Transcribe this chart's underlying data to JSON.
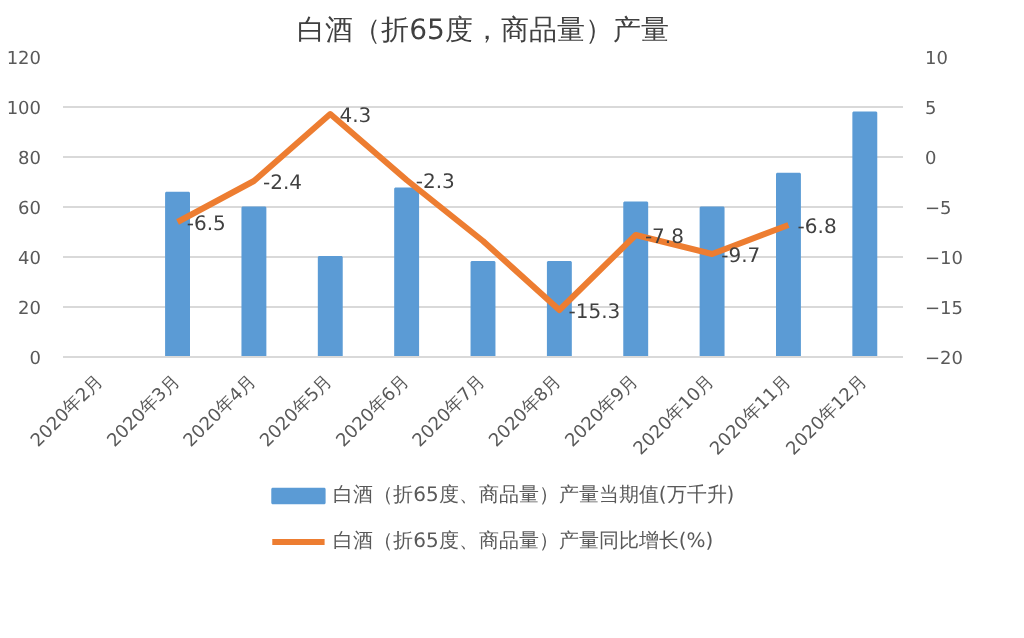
{
  "chart_data": {
    "type": "bar",
    "title": "白酒（折65度，商品量）产量",
    "categories": [
      "2020年2月",
      "2020年3月",
      "2020年4月",
      "2020年5月",
      "2020年6月",
      "2020年7月",
      "2020年8月",
      "2020年9月",
      "2020年10月",
      "2020年11月",
      "2020年12月"
    ],
    "series": [
      {
        "name": "白酒（折65度、商品量）产量当期值(万千升)",
        "color": "#5b9bd5",
        "values": [
          null,
          65.7,
          59.8,
          40,
          67.4,
          38,
          38,
          61.8,
          59.8,
          73.3,
          97.8
        ]
      },
      {
        "name": "白酒（折65度、商品量）产量同比增长(%)",
        "type": "line",
        "axis": "y2",
        "color": "#ed7d31",
        "values": [
          null,
          -6.5,
          -2.4,
          4.3,
          -2.3,
          -8.4,
          -15.3,
          -7.8,
          -9.7,
          -6.8,
          null
        ],
        "value_labels": [
          null,
          "-6.5",
          "-2.4",
          "4.3",
          "-2.3",
          null,
          "-15.3",
          "-7.8",
          "-9.7",
          "-6.8",
          null
        ]
      }
    ],
    "ylim": [
      0,
      120
    ],
    "yticks": [
      0,
      20,
      40,
      60,
      80,
      100,
      120
    ],
    "y2lim": [
      -20,
      10
    ],
    "y2ticks": [
      -20,
      -15,
      -10,
      -5,
      0,
      5,
      10
    ],
    "grid": "y",
    "legend": "bottom",
    "marker": "none",
    "line_style": "solid"
  }
}
